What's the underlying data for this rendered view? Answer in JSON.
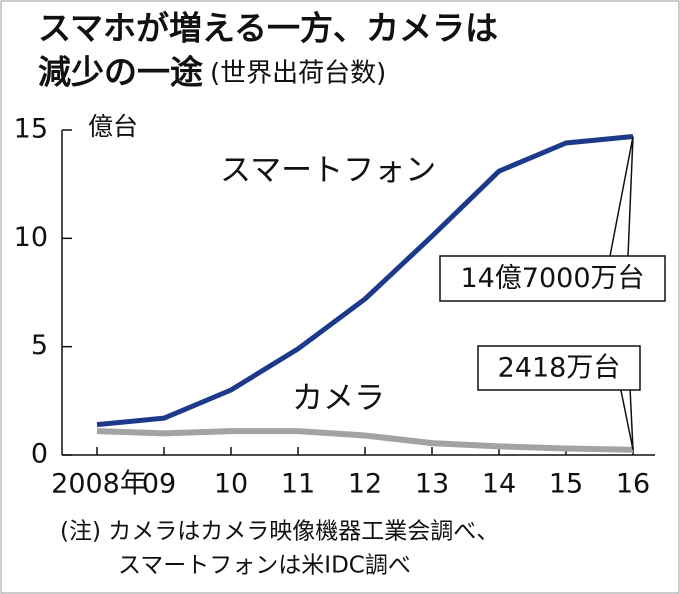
{
  "chart_data": {
    "type": "line",
    "title": "スマホが増える一方、カメラは",
    "title_line2": "減少の一途",
    "subtitle": "(世界出荷台数)",
    "y_unit_label": "億台",
    "categories": [
      "2008年",
      "09",
      "10",
      "11",
      "12",
      "13",
      "14",
      "15",
      "16"
    ],
    "series": [
      {
        "name": "スマートフォン",
        "color": "#1d3a8a",
        "values": [
          1.4,
          1.7,
          3.0,
          4.9,
          7.2,
          10.1,
          13.1,
          14.4,
          14.7
        ],
        "value_labels": [
          null,
          null,
          null,
          null,
          null,
          null,
          null,
          null,
          "14億7000万台"
        ]
      },
      {
        "name": "カメラ",
        "color": "#a3a3a3",
        "values": [
          1.1,
          1.0,
          1.1,
          1.1,
          0.9,
          0.55,
          0.4,
          0.3,
          0.2418
        ],
        "value_labels": [
          null,
          null,
          null,
          null,
          null,
          null,
          null,
          null,
          "2418万台"
        ]
      }
    ],
    "ylim": [
      0,
      15
    ],
    "yticks": [
      0,
      5,
      10,
      15
    ],
    "grid": false,
    "notes": [
      "(注) カメラはカメラ映像機器工業会調べ、",
      "スマートフォンは米IDC調べ"
    ]
  }
}
